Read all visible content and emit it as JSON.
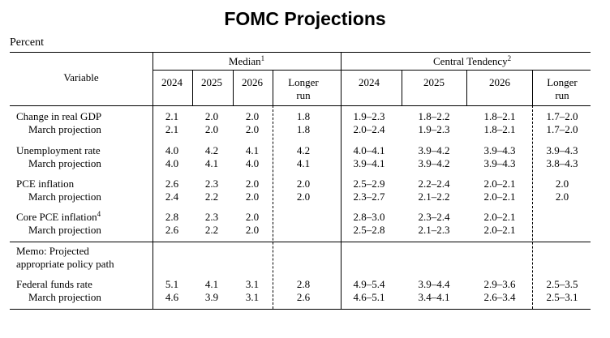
{
  "title": "FOMC Projections",
  "unit_label": "Percent",
  "header": {
    "variable": "Variable",
    "median": "Median",
    "median_note": "1",
    "central": "Central Tendency",
    "central_note": "2",
    "years": [
      "2024",
      "2025",
      "2026"
    ],
    "longer_1": "Longer",
    "longer_2": "run"
  },
  "rows": [
    {
      "label": "Change in real GDP",
      "median": [
        "2.1",
        "2.0",
        "2.0",
        "1.8"
      ],
      "central": [
        "1.9–2.3",
        "1.8–2.2",
        "1.8–2.1",
        "1.7–2.0"
      ],
      "march_label": "March projection",
      "march_median": [
        "2.1",
        "2.0",
        "2.0",
        "1.8"
      ],
      "march_central": [
        "2.0–2.4",
        "1.9–2.3",
        "1.8–2.1",
        "1.7–2.0"
      ]
    },
    {
      "label": "Unemployment rate",
      "median": [
        "4.0",
        "4.2",
        "4.1",
        "4.2"
      ],
      "central": [
        "4.0–4.1",
        "3.9–4.2",
        "3.9–4.3",
        "3.9–4.3"
      ],
      "march_label": "March projection",
      "march_median": [
        "4.0",
        "4.1",
        "4.0",
        "4.1"
      ],
      "march_central": [
        "3.9–4.1",
        "3.9–4.2",
        "3.9–4.3",
        "3.8–4.3"
      ]
    },
    {
      "label": "PCE inflation",
      "median": [
        "2.6",
        "2.3",
        "2.0",
        "2.0"
      ],
      "central": [
        "2.5–2.9",
        "2.2–2.4",
        "2.0–2.1",
        "2.0"
      ],
      "march_label": "March projection",
      "march_median": [
        "2.4",
        "2.2",
        "2.0",
        "2.0"
      ],
      "march_central": [
        "2.3–2.7",
        "2.1–2.2",
        "2.0–2.1",
        "2.0"
      ]
    },
    {
      "label": "Core PCE inflation",
      "label_note": "4",
      "median": [
        "2.8",
        "2.3",
        "2.0",
        ""
      ],
      "central": [
        "2.8–3.0",
        "2.3–2.4",
        "2.0–2.1",
        ""
      ],
      "march_label": "March projection",
      "march_median": [
        "2.6",
        "2.2",
        "2.0",
        ""
      ],
      "march_central": [
        "2.5–2.8",
        "2.1–2.3",
        "2.0–2.1",
        ""
      ]
    }
  ],
  "memo": {
    "line1": "Memo: Projected",
    "line2": "appropriate policy path"
  },
  "ffr": {
    "label": "Federal funds rate",
    "median": [
      "5.1",
      "4.1",
      "3.1",
      "2.8"
    ],
    "central": [
      "4.9–5.4",
      "3.9–4.4",
      "2.9–3.6",
      "2.5–3.5"
    ],
    "march_label": "March projection",
    "march_median": [
      "4.6",
      "3.9",
      "3.1",
      "2.6"
    ],
    "march_central": [
      "4.6–5.1",
      "3.4–4.1",
      "2.6–3.4",
      "2.5–3.1"
    ]
  }
}
